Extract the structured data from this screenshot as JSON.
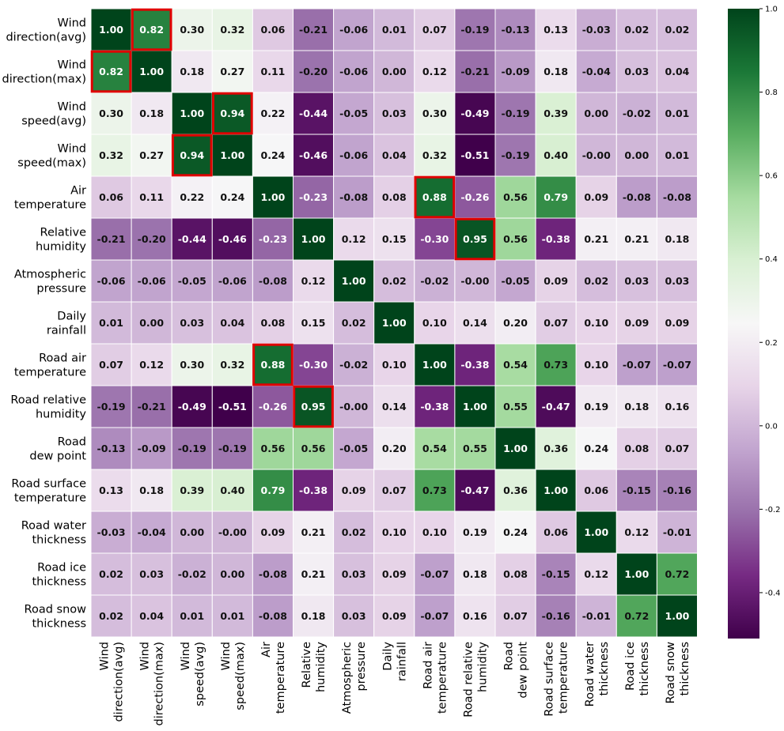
{
  "chart_data": {
    "type": "heatmap",
    "title": "",
    "xlabel": "",
    "ylabel": "",
    "labels": [
      "Wind\ndirection(avg)",
      "Wind\ndirection(max)",
      "Wind\nspeed(avg)",
      "Wind\nspeed(max)",
      "Air\ntemperature",
      "Relative\nhumidity",
      "Atmospheric\npressure",
      "Daily\nrainfall",
      "Road air\ntemperature",
      "Road relative\nhumidity",
      "Road\ndew point",
      "Road surface\ntemperature",
      "Road water\nthickness",
      "Road ice\nthickness",
      "Road snow\nthickness"
    ],
    "values": [
      [
        1.0,
        0.82,
        0.3,
        0.32,
        0.06,
        -0.21,
        -0.06,
        0.01,
        0.07,
        -0.19,
        -0.13,
        0.13,
        -0.03,
        0.02,
        0.02
      ],
      [
        0.82,
        1.0,
        0.18,
        0.27,
        0.11,
        -0.2,
        -0.06,
        0.0,
        0.12,
        -0.21,
        -0.09,
        0.18,
        -0.04,
        0.03,
        0.04
      ],
      [
        0.3,
        0.18,
        1.0,
        0.94,
        0.22,
        -0.44,
        -0.05,
        0.03,
        0.3,
        -0.49,
        -0.19,
        0.39,
        0.0,
        -0.02,
        0.01
      ],
      [
        0.32,
        0.27,
        0.94,
        1.0,
        0.24,
        -0.46,
        -0.06,
        0.04,
        0.32,
        -0.51,
        -0.19,
        0.4,
        -0.0,
        0.0,
        0.01
      ],
      [
        0.06,
        0.11,
        0.22,
        0.24,
        1.0,
        -0.23,
        -0.08,
        0.08,
        0.88,
        -0.26,
        0.56,
        0.79,
        0.09,
        -0.08,
        -0.08
      ],
      [
        -0.21,
        -0.2,
        -0.44,
        -0.46,
        -0.23,
        1.0,
        0.12,
        0.15,
        -0.3,
        0.95,
        0.56,
        -0.38,
        0.21,
        0.21,
        0.18
      ],
      [
        -0.06,
        -0.06,
        -0.05,
        -0.06,
        -0.08,
        0.12,
        1.0,
        0.02,
        -0.02,
        -0.0,
        -0.05,
        0.09,
        0.02,
        0.03,
        0.03
      ],
      [
        0.01,
        0.0,
        0.03,
        0.04,
        0.08,
        0.15,
        0.02,
        1.0,
        0.1,
        0.14,
        0.2,
        0.07,
        0.1,
        0.09,
        0.09
      ],
      [
        0.07,
        0.12,
        0.3,
        0.32,
        0.88,
        -0.3,
        -0.02,
        0.1,
        1.0,
        -0.38,
        0.54,
        0.73,
        0.1,
        -0.07,
        -0.07
      ],
      [
        -0.19,
        -0.21,
        -0.49,
        -0.51,
        -0.26,
        0.95,
        -0.0,
        0.14,
        -0.38,
        1.0,
        0.55,
        -0.47,
        0.19,
        0.18,
        0.16
      ],
      [
        -0.13,
        -0.09,
        -0.19,
        -0.19,
        0.56,
        0.56,
        -0.05,
        0.2,
        0.54,
        0.55,
        1.0,
        0.36,
        0.24,
        0.08,
        0.07
      ],
      [
        0.13,
        0.18,
        0.39,
        0.4,
        0.79,
        -0.38,
        0.09,
        0.07,
        0.73,
        -0.47,
        0.36,
        1.0,
        0.06,
        -0.15,
        -0.16
      ],
      [
        -0.03,
        -0.04,
        0.0,
        -0.0,
        0.09,
        0.21,
        0.02,
        0.1,
        0.1,
        0.19,
        0.24,
        0.06,
        1.0,
        0.12,
        -0.01
      ],
      [
        0.02,
        0.03,
        -0.02,
        0.0,
        -0.08,
        0.21,
        0.03,
        0.09,
        -0.07,
        0.18,
        0.08,
        -0.15,
        0.12,
        1.0,
        0.72
      ],
      [
        0.02,
        0.04,
        0.01,
        0.01,
        -0.08,
        0.18,
        0.03,
        0.09,
        -0.07,
        0.16,
        0.07,
        -0.16,
        -0.01,
        0.72,
        1.0
      ]
    ],
    "highlighted_cells": [
      [
        0,
        1
      ],
      [
        1,
        0
      ],
      [
        2,
        3
      ],
      [
        3,
        2
      ],
      [
        4,
        8
      ],
      [
        8,
        4
      ],
      [
        5,
        9
      ],
      [
        9,
        5
      ]
    ],
    "highlight_color": "#e00000",
    "colormap": "PRGn",
    "colorbar": {
      "vmin": -0.51,
      "vmax": 1.0,
      "ticks": [
        -0.4,
        -0.2,
        0.0,
        0.2,
        0.4,
        0.6,
        0.8,
        1.0
      ],
      "tick_labels": [
        "-0.4",
        "-0.2",
        "0.0",
        "0.2",
        "0.4",
        "0.6",
        "0.8",
        "1.0"
      ]
    },
    "grid": true,
    "legend": "colorbar-right"
  }
}
